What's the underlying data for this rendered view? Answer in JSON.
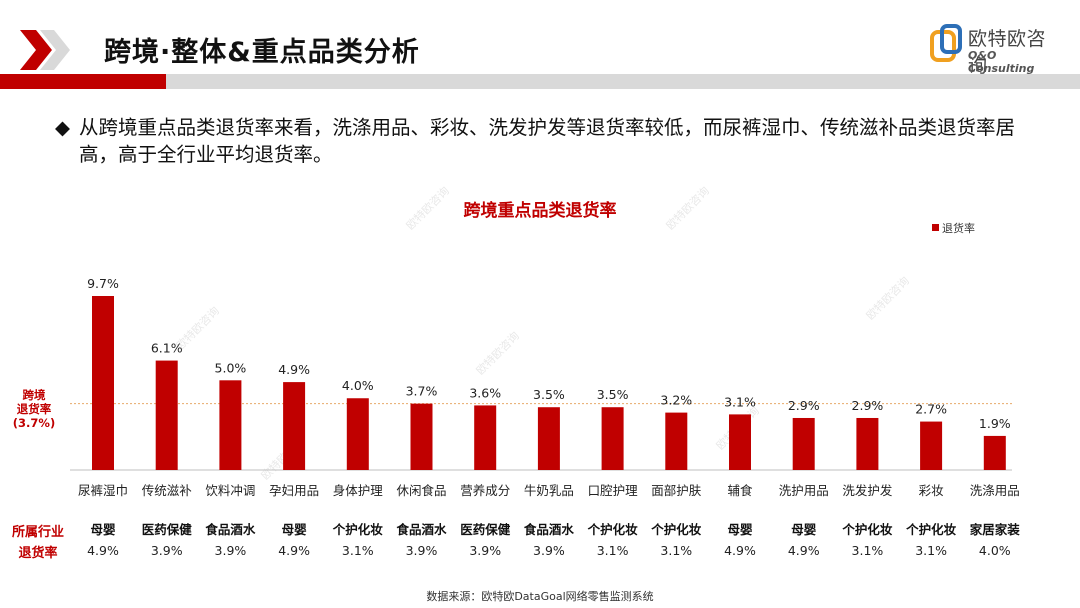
{
  "header": {
    "title": "跨境·整体&重点品类分析",
    "logo_cn": "欧特欧咨询",
    "logo_en": "O&O Consulting"
  },
  "bullet": {
    "symbol": "◆",
    "text": "从跨境重点品类退货率来看，洗涤用品、彩妆、洗发护发等退货率较低，而尿裤湿巾、传统滋补品类退货率居高，高于全行业平均退货率。"
  },
  "average": {
    "label_line1": "跨境",
    "label_line2": "退货率",
    "label_line3": "(3.7%)",
    "value": 3.7
  },
  "table": {
    "industry_header": "所属行业",
    "rate_header": "退货率",
    "industries": [
      "母婴",
      "医药保健",
      "食品酒水",
      "母婴",
      "个护化妆",
      "食品酒水",
      "医药保健",
      "食品酒水",
      "个护化妆",
      "个护化妆",
      "母婴",
      "母婴",
      "个护化妆",
      "个护化妆",
      "家居家装"
    ],
    "rates": [
      "4.9%",
      "3.9%",
      "3.9%",
      "4.9%",
      "3.1%",
      "3.9%",
      "3.9%",
      "3.9%",
      "3.1%",
      "3.1%",
      "4.9%",
      "4.9%",
      "3.1%",
      "3.1%",
      "4.0%"
    ]
  },
  "source": "数据来源：欧特欧DataGoal网络零售监测系统",
  "colors": {
    "bar": "#c00000",
    "accent": "#c00000",
    "avg_line": "#e8a96a"
  },
  "chart_data": {
    "type": "bar",
    "title": "跨境重点品类退货率",
    "categories": [
      "尿裤湿巾",
      "传统滋补",
      "饮料冲调",
      "孕妇用品",
      "身体护理",
      "休闲食品",
      "营养成分",
      "牛奶乳品",
      "口腔护理",
      "面部护肤",
      "辅食",
      "洗护用品",
      "洗发护发",
      "彩妆",
      "洗涤用品"
    ],
    "series": [
      {
        "name": "退货率",
        "values": [
          9.7,
          6.1,
          5.0,
          4.9,
          4.0,
          3.7,
          3.6,
          3.5,
          3.5,
          3.2,
          3.1,
          2.9,
          2.9,
          2.7,
          1.9
        ]
      }
    ],
    "data_labels": [
      "9.7%",
      "6.1%",
      "5.0%",
      "4.9%",
      "4.0%",
      "3.7%",
      "3.6%",
      "3.5%",
      "3.5%",
      "3.2%",
      "3.1%",
      "2.9%",
      "2.9%",
      "2.7%",
      "1.9%"
    ],
    "legend_position": "top-right",
    "grid": false,
    "ylim": [
      0,
      10
    ]
  }
}
